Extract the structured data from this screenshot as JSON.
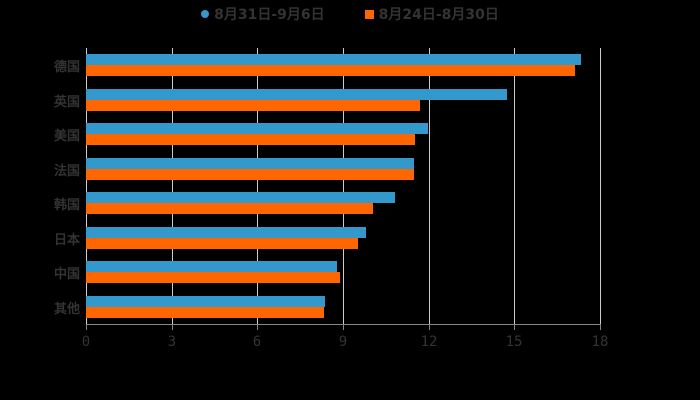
{
  "chart_data": {
    "type": "bar",
    "orientation": "horizontal",
    "title": "",
    "xlabel": "",
    "ylabel": "",
    "categories": [
      "德国",
      "英国",
      "美国",
      "法国",
      "韩国",
      "日本",
      "中国",
      "其他"
    ],
    "series": [
      {
        "name": "8月31日-9月6日",
        "color": "#3399cc",
        "values": [
          17.33,
          14.74,
          11.97,
          11.48,
          10.82,
          9.8,
          8.79,
          8.37
        ]
      },
      {
        "name": "8月24日-8月30日",
        "color": "#ff6600",
        "values": [
          17.12,
          11.69,
          11.52,
          11.48,
          10.05,
          9.52,
          8.89,
          8.33
        ]
      }
    ],
    "xlim": [
      0,
      18
    ],
    "xticks": [
      "0",
      "3",
      "6",
      "9",
      "12",
      "15",
      "18"
    ],
    "grid": true,
    "legend_position": "top"
  }
}
